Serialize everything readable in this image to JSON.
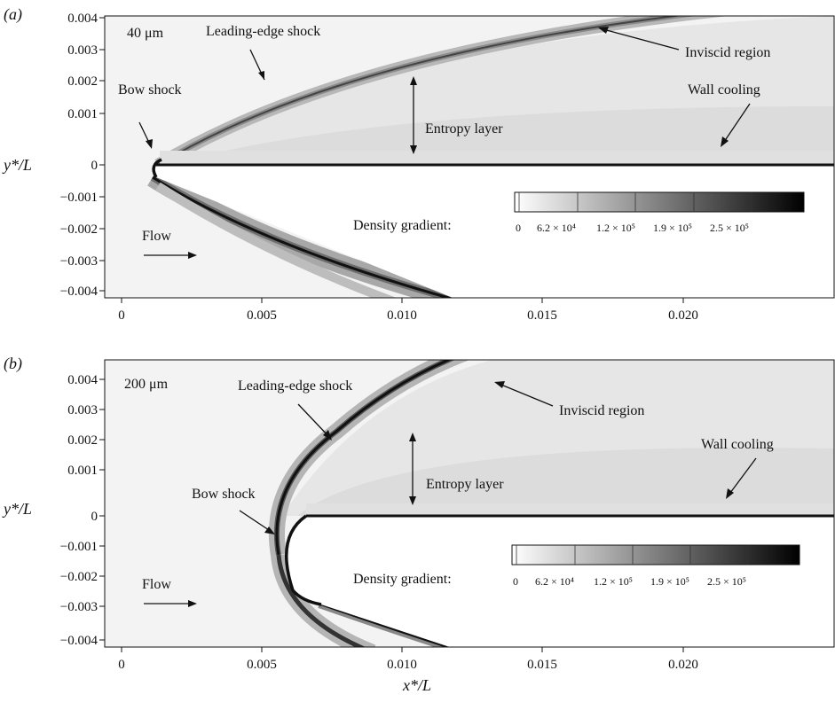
{
  "figure": {
    "panels": [
      {
        "label": "(a)",
        "scale_text": "40 μm",
        "ylabel": "y*/L",
        "annotations": {
          "bow_shock": "Bow shock",
          "leading_edge_shock": "Leading-edge shock",
          "inviscid_region": "Inviscid region",
          "entropy_layer": "Entropy layer",
          "wall_cooling": "Wall cooling",
          "flow": "Flow",
          "density_gradient": "Density gradient:"
        },
        "colorbar_ticks": [
          "0",
          "6.2 × 10⁴",
          "1.2 × 10⁵",
          "1.9 × 10⁵",
          "2.5 × 10⁵"
        ],
        "x_ticks": [
          "0",
          "0.005",
          "0.010",
          "0.015",
          "0.020"
        ],
        "y_ticks": [
          "0.004",
          "0.003",
          "0.002",
          "0.001",
          "0",
          "−0.001",
          "−0.002",
          "−0.003",
          "−0.004"
        ],
        "nose_radius_um": 40
      },
      {
        "label": "(b)",
        "scale_text": "200 μm",
        "ylabel": "y*/L",
        "annotations": {
          "bow_shock": "Bow shock",
          "leading_edge_shock": "Leading-edge shock",
          "inviscid_region": "Inviscid region",
          "entropy_layer": "Entropy layer",
          "wall_cooling": "Wall cooling",
          "flow": "Flow",
          "density_gradient": "Density gradient:"
        },
        "colorbar_ticks": [
          "0",
          "6.2 × 10⁴",
          "1.2 × 10⁵",
          "1.9 × 10⁵",
          "2.5 × 10⁵"
        ],
        "x_ticks": [
          "0",
          "0.005",
          "0.010",
          "0.015",
          "0.020"
        ],
        "y_ticks": [
          "0.004",
          "0.003",
          "0.002",
          "0.001",
          "0",
          "−0.001",
          "−0.002",
          "−0.003",
          "−0.004"
        ],
        "nose_radius_um": 200
      }
    ],
    "xlabel": "x*/L",
    "colors": {
      "background": "#f3f3f3",
      "shock": "#111111",
      "flat_plate": "#ffffff"
    }
  }
}
